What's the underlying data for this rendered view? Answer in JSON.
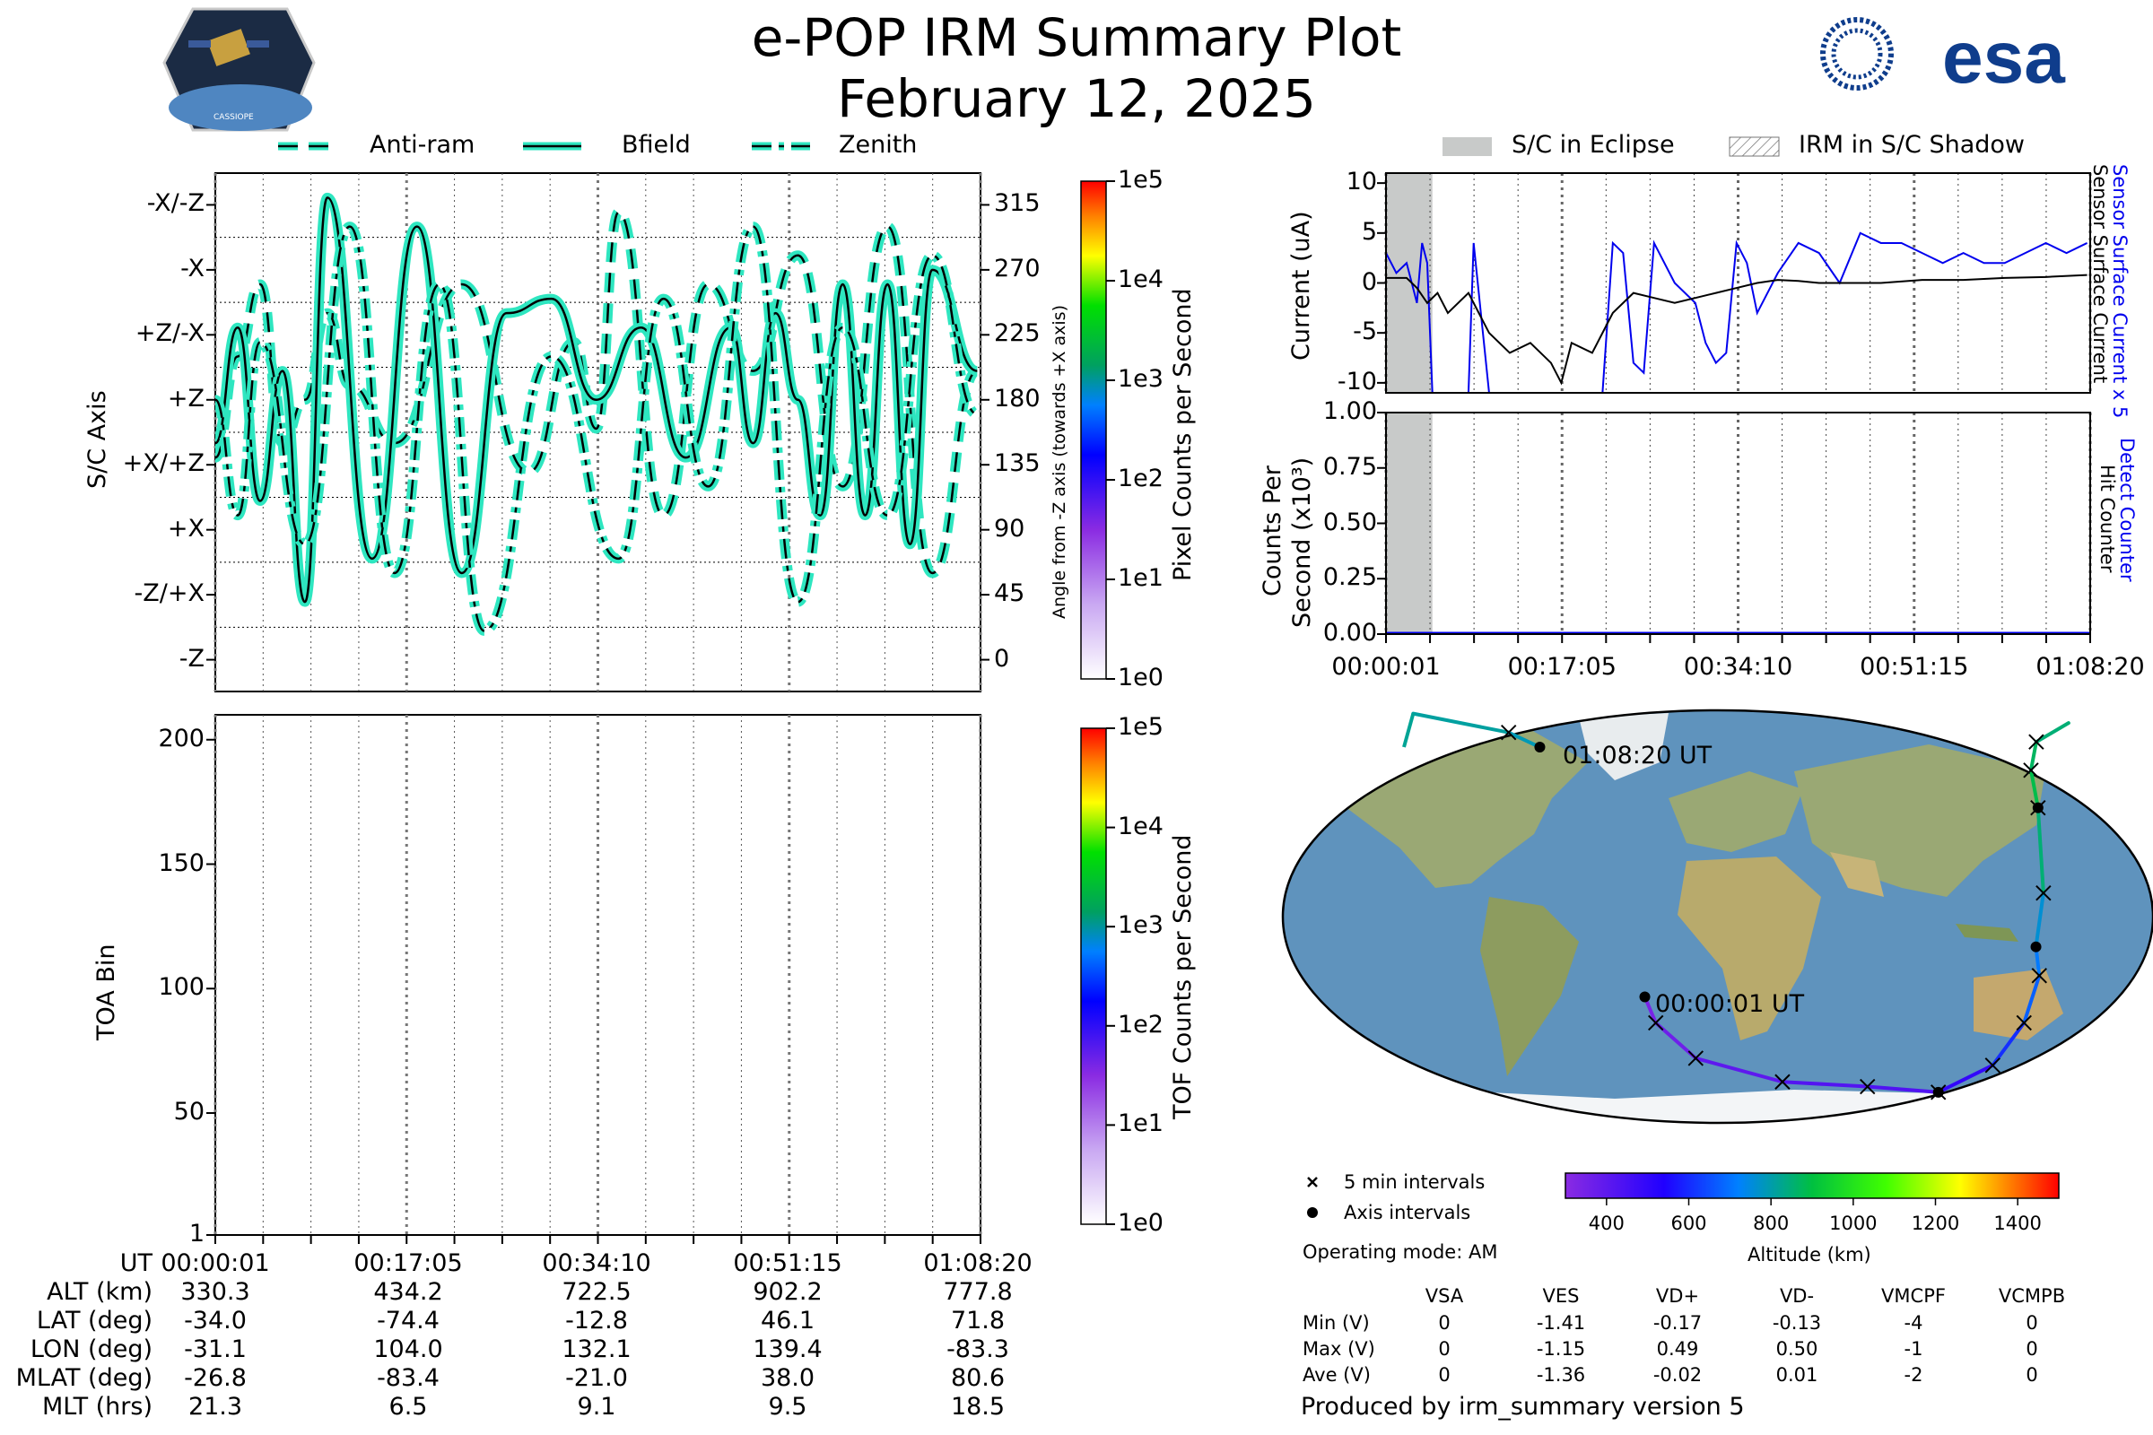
{
  "header": {
    "title": "e-POP IRM Summary Plot",
    "date": "February 12, 2025",
    "esa_logo_text": "esa",
    "cassiope_badge_text": "CASSIOPE"
  },
  "colors": {
    "curve_fill": "#2ee6c0",
    "curve_line": "#000000",
    "eclipse": "#c8cac9",
    "sensor_current": "#0000ee",
    "surface_current": "#000000",
    "ocean": "#5f93bd",
    "land": "#9aa874",
    "ice": "#f3f5f7"
  },
  "legend_top": {
    "items": [
      {
        "label": "Anti-ram",
        "style": "dashed"
      },
      {
        "label": "Bfield",
        "style": "solid"
      },
      {
        "label": "Zenith",
        "style": "dashdot"
      }
    ]
  },
  "legend_right": {
    "eclipse_label": "S/C in Eclipse",
    "shadow_label": "IRM in S/C Shadow"
  },
  "chart_data": [
    {
      "id": "axis-orientation",
      "type": "line",
      "ylabel": "S/C Axis",
      "ylabel_right": "Angle from -Z axis (towards +X axis)",
      "y_categories": [
        "-Z",
        "-Z/+X",
        "+X",
        "+X/+Z",
        "+Z",
        "+Z/-X",
        "-X",
        "-X/-Z"
      ],
      "right_ticks": [
        0,
        45,
        90,
        135,
        180,
        225,
        270,
        315
      ],
      "ylim": [
        -22,
        337
      ],
      "xlim_minutes": [
        0,
        68.3
      ],
      "series": [
        {
          "name": "Anti-ram",
          "style": "dashed",
          "x": [
            0,
            2,
            4,
            6,
            8,
            10,
            12,
            16,
            22,
            28,
            32,
            34,
            36,
            40,
            44,
            48,
            52,
            56,
            60,
            64,
            68
          ],
          "y": [
            140,
            210,
            260,
            150,
            180,
            240,
            190,
            150,
            260,
            130,
            220,
            160,
            310,
            100,
            260,
            200,
            280,
            120,
            300,
            60,
            200
          ]
        },
        {
          "name": "Bfield",
          "style": "solid",
          "x": [
            0,
            2,
            4,
            6,
            8,
            10,
            14,
            18,
            22,
            26,
            30,
            34,
            38,
            42,
            46,
            48,
            50,
            52,
            54,
            56,
            58,
            60,
            62,
            64,
            68
          ],
          "y": [
            150,
            230,
            110,
            200,
            40,
            320,
            70,
            300,
            60,
            240,
            250,
            180,
            230,
            140,
            230,
            150,
            240,
            180,
            100,
            260,
            100,
            260,
            80,
            270,
            200
          ]
        },
        {
          "name": "Zenith",
          "style": "dashdot",
          "x": [
            0,
            2,
            4,
            8,
            12,
            16,
            20,
            24,
            30,
            36,
            40,
            44,
            48,
            52,
            56,
            60,
            64,
            68
          ],
          "y": [
            180,
            100,
            220,
            80,
            300,
            60,
            260,
            20,
            210,
            70,
            250,
            120,
            300,
            40,
            230,
            100,
            280,
            170
          ]
        }
      ]
    },
    {
      "id": "toa",
      "type": "heatmap",
      "ylabel": "TOA Bin",
      "y_ticks": [
        1,
        50,
        100,
        150,
        200
      ],
      "ylim": [
        1,
        210
      ],
      "values": []
    },
    {
      "id": "current",
      "type": "line",
      "ylabel": "Current (uA)",
      "ylabel_right_1": "Sensor Surface Current x 5",
      "ylabel_right_2": "Sensor Surface Current",
      "y_ticks": [
        10,
        5,
        0,
        -5,
        -10
      ],
      "ylim": [
        -11,
        11
      ],
      "eclipse_minutes": [
        0,
        4.5
      ],
      "series": [
        {
          "name": "Sensor Surface Current x 5",
          "x": [
            0,
            1,
            2,
            3,
            3.5,
            4,
            4.5,
            5,
            6,
            8,
            8.5,
            9,
            10,
            12,
            14,
            16,
            19,
            21,
            22,
            23,
            24,
            25,
            26,
            28,
            30,
            31,
            32,
            33,
            34,
            35,
            36,
            38,
            40,
            42,
            44,
            46,
            48,
            50,
            52,
            54,
            56,
            58,
            60,
            62,
            64,
            66,
            68
          ],
          "y": [
            3,
            1,
            2,
            -2,
            4,
            2,
            -11,
            -11,
            -11,
            -11,
            4,
            -1,
            -11,
            -11,
            -11,
            -11,
            -11,
            -11,
            4,
            3,
            -8,
            -9,
            4,
            0,
            -2,
            -6,
            -8,
            -7,
            4,
            2,
            -3,
            1,
            4,
            3,
            0,
            5,
            4,
            4,
            3,
            2,
            3,
            2,
            2,
            3,
            4,
            3,
            4
          ]
        },
        {
          "name": "Sensor Surface Current",
          "x": [
            0,
            2,
            3,
            4,
            5,
            6,
            8,
            10,
            12,
            14,
            16,
            17,
            18,
            20,
            22,
            24,
            26,
            28,
            30,
            32,
            34,
            36,
            38,
            40,
            42,
            44,
            48,
            52,
            56,
            60,
            64,
            68
          ],
          "y": [
            0.5,
            0.5,
            -0.5,
            -2,
            -1,
            -3,
            -1,
            -5,
            -7,
            -6,
            -8,
            -10,
            -6,
            -7,
            -3,
            -1,
            -1.5,
            -2,
            -1.5,
            -1,
            -0.5,
            0,
            0.3,
            0.2,
            0,
            0,
            0,
            0.3,
            0.3,
            0.5,
            0.6,
            0.8
          ]
        }
      ]
    },
    {
      "id": "counts",
      "type": "line",
      "ylabel_1": "Counts Per",
      "ylabel_2": "Second (x10³)",
      "ylabel_right_1": "Detect Counter",
      "ylabel_right_2": "Hit Counter",
      "y_ticks": [
        "1.00",
        "0.75",
        "0.50",
        "0.25",
        "0.00"
      ],
      "ylim": [
        0,
        1
      ],
      "eclipse_minutes": [
        0,
        4.5
      ],
      "series": [
        {
          "name": "Detect Counter",
          "x": [
            0,
            68.3
          ],
          "y": [
            0,
            0
          ]
        },
        {
          "name": "Hit Counter",
          "x": [
            0,
            68.3
          ],
          "y": [
            0,
            0
          ]
        }
      ]
    },
    {
      "id": "orbit-map",
      "type": "scatter",
      "start_label": "00:00:01 UT",
      "end_label": "01:08:20 UT",
      "track": [
        {
          "lon": -31.1,
          "lat": -34.0,
          "alt": 330
        },
        {
          "lon": -27,
          "lat": -45,
          "alt": 345
        },
        {
          "lon": -10,
          "lat": -60,
          "alt": 380
        },
        {
          "lon": 30,
          "lat": -70,
          "alt": 420
        },
        {
          "lon": 70,
          "lat": -72,
          "alt": 430
        },
        {
          "lon": 104.0,
          "lat": -74.4,
          "alt": 434
        },
        {
          "lon": 125,
          "lat": -63,
          "alt": 560
        },
        {
          "lon": 133,
          "lat": -45,
          "alt": 650
        },
        {
          "lon": 135,
          "lat": -25,
          "alt": 700
        },
        {
          "lon": 132.1,
          "lat": -12.8,
          "alt": 722
        },
        {
          "lon": 135,
          "lat": 10,
          "alt": 800
        },
        {
          "lon": 139.4,
          "lat": 46.1,
          "alt": 902
        },
        {
          "lon": 142,
          "lat": 62,
          "alt": 880
        },
        {
          "lon": 150,
          "lat": 74,
          "alt": 860
        },
        {
          "lon": 170,
          "lat": 82,
          "alt": 840
        },
        {
          "lon": -150,
          "lat": 86,
          "alt": 820
        },
        {
          "lon": -100,
          "lat": 78,
          "alt": 800
        },
        {
          "lon": -83.3,
          "lat": 71.8,
          "alt": 778
        }
      ],
      "colorbar": {
        "label": "Altitude (km)",
        "ticks": [
          400,
          600,
          800,
          1000,
          1200,
          1400
        ],
        "range": [
          300,
          1500
        ]
      }
    }
  ],
  "axis_colorbars": {
    "pixel": {
      "label": "Pixel Counts per Second",
      "ticks": [
        "1e0",
        "1e1",
        "1e2",
        "1e3",
        "1e4",
        "1e5"
      ]
    },
    "tof": {
      "label": "TOF Counts per Second",
      "ticks": [
        "1e0",
        "1e1",
        "1e2",
        "1e3",
        "1e4",
        "1e5"
      ]
    }
  },
  "time_ticks": [
    "00:00:01",
    "00:17:05",
    "00:34:10",
    "00:51:15",
    "01:08:20"
  ],
  "ephemeris": {
    "row_labels": [
      "UT",
      "ALT (km)",
      "LAT (deg)",
      "LON (deg)",
      "MLAT (deg)",
      "MLT (hrs)"
    ],
    "columns": [
      [
        "00:00:01",
        "330.3",
        "-34.0",
        "-31.1",
        "-26.8",
        "21.3"
      ],
      [
        "00:17:05",
        "434.2",
        "-74.4",
        "104.0",
        "-83.4",
        "6.5"
      ],
      [
        "00:34:10",
        "722.5",
        "-12.8",
        "132.1",
        "-21.0",
        "9.1"
      ],
      [
        "00:51:15",
        "902.2",
        "46.1",
        "139.4",
        "38.0",
        "9.5"
      ],
      [
        "01:08:20",
        "777.8",
        "71.8",
        "-83.3",
        "80.6",
        "18.5"
      ]
    ]
  },
  "map_legend": {
    "interval_label": "5 min intervals",
    "axis_label": "Axis intervals",
    "operating_mode": "Operating mode: AM"
  },
  "voltages": {
    "headers": [
      "VSA",
      "VES",
      "VD+",
      "VD-",
      "VMCPF",
      "VCMPB"
    ],
    "rows": [
      {
        "label": "Min (V)",
        "values": [
          "0",
          "-1.41",
          "-0.17",
          "-0.13",
          "-4",
          "0"
        ]
      },
      {
        "label": "Max (V)",
        "values": [
          "0",
          "-1.15",
          "0.49",
          "0.50",
          "-1",
          "0"
        ]
      },
      {
        "label": "Ave (V)",
        "values": [
          "0",
          "-1.36",
          "-0.02",
          "0.01",
          "-2",
          "0"
        ]
      }
    ]
  },
  "footer": "Produced by irm_summary version 5"
}
